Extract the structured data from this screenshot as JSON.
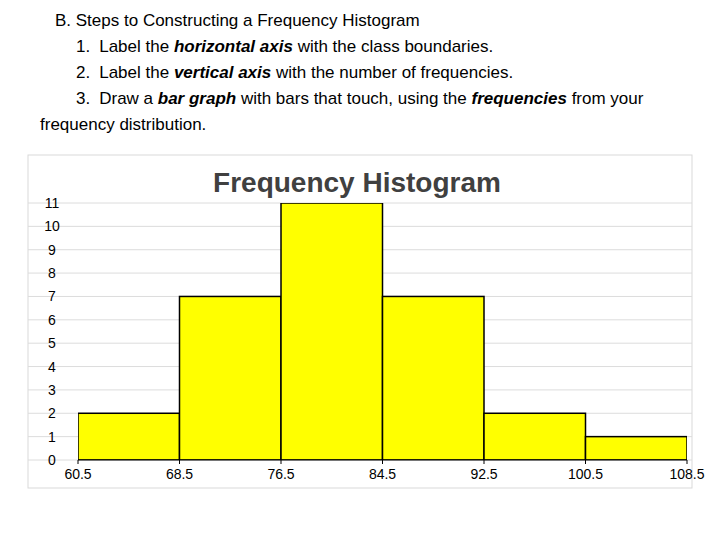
{
  "header": {
    "title": "B.  Steps to Constructing a Frequency Histogram",
    "steps": [
      {
        "number": "1.",
        "parts": [
          {
            "text": "Label the "
          },
          {
            "text": "horizontal axis",
            "emphasis": true
          },
          {
            "text": " with the class boundaries."
          }
        ]
      },
      {
        "number": "2.",
        "parts": [
          {
            "text": "Label the "
          },
          {
            "text": "vertical axis",
            "emphasis": true
          },
          {
            "text": " with the number of frequencies."
          }
        ]
      },
      {
        "number": "3.",
        "parts": [
          {
            "text": "Draw a "
          },
          {
            "text": "bar graph",
            "emphasis": true
          },
          {
            "text": " with bars that touch, using the "
          },
          {
            "text": "frequencies",
            "emphasis": true
          },
          {
            "text": " from your frequency distribution."
          }
        ]
      }
    ]
  },
  "chart_data": {
    "type": "histogram",
    "title": "Frequency Histogram",
    "bins": [
      60.5,
      68.5,
      76.5,
      84.5,
      92.5,
      100.5,
      108.5
    ],
    "values": [
      2,
      7,
      11,
      7,
      2,
      1
    ],
    "color": "#ffff00",
    "xlim": [
      60.5,
      108.5
    ],
    "xticks": [
      60.5,
      68.5,
      76.5,
      84.5,
      92.5,
      100.5,
      108.5
    ],
    "ylim": [
      0,
      11
    ],
    "yticks": [
      0,
      1,
      2,
      3,
      4,
      5,
      6,
      7,
      8,
      9,
      10,
      11
    ],
    "grid": true
  }
}
